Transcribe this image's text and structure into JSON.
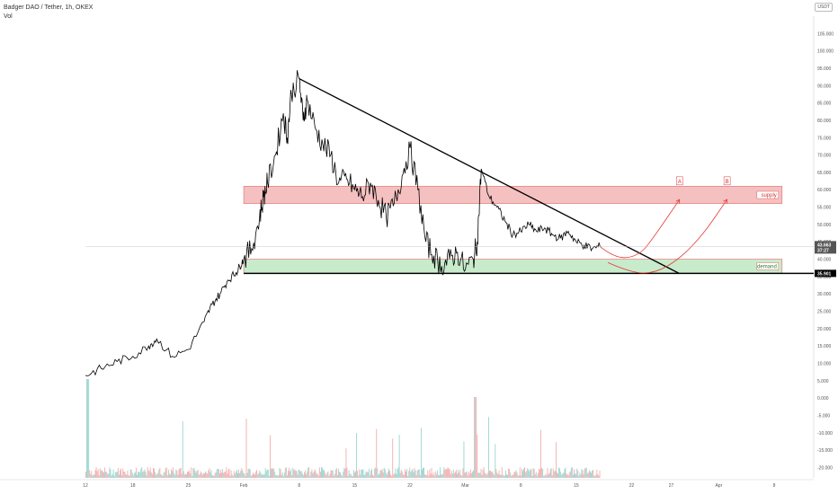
{
  "header": {
    "symbol_line": "Badger DAO / Tether, 1h, OKEX",
    "indicator": "Vol",
    "currency": "USDT"
  },
  "colors": {
    "price": "#000000",
    "supply_fill": "#f4b6b6",
    "supply_stroke": "#e06666",
    "demand_fill": "#bfe8c4",
    "demand_stroke": "#e06666",
    "arrow": "#e53935",
    "vol_up": "#80cbc4",
    "vol_down": "#ef9a9a",
    "support_line": "#000000",
    "last_price_badge": "#555555"
  },
  "chart_data": {
    "type": "line",
    "title": "Badger DAO / Tether, 1h, OKEX",
    "x_tick_labels": [
      "12",
      "18",
      "25",
      "Feb",
      "8",
      "15",
      "22",
      "Mar",
      "8",
      "15",
      "22",
      "27",
      "Apr",
      "8"
    ],
    "x_tick_days": [
      0,
      6,
      13,
      20,
      27,
      34,
      41,
      48,
      55,
      62,
      69,
      74,
      80,
      87
    ],
    "y_ticks": [
      105,
      100,
      95,
      90,
      85,
      80,
      75,
      70,
      65,
      60,
      55,
      50,
      45,
      40,
      35,
      30,
      25,
      20,
      15,
      10,
      5,
      0,
      -5,
      -10,
      -15,
      -20
    ],
    "y_tick_labels": [
      "105.000",
      "100.000",
      "95.000",
      "90.000",
      "85.000",
      "80.000",
      "75.000",
      "70.000",
      "65.000",
      "60.000",
      "55.000",
      "50.000",
      "45.000",
      "40.000",
      "35.000",
      "30.000",
      "25.000",
      "20.000",
      "15.000",
      "10.000",
      "5.000",
      "0.000",
      "-5.000",
      "-10.000",
      "-15.000",
      "-20.000"
    ],
    "ylim": [
      -23,
      110
    ],
    "xlim": [
      0,
      92
    ],
    "price_series": {
      "x_day": [
        0,
        2,
        4,
        6,
        8,
        9,
        11,
        13,
        15,
        16,
        17,
        18,
        19,
        19.5,
        20,
        21,
        22,
        22.5,
        23,
        24,
        25,
        25.5,
        26,
        27,
        27.5,
        28,
        29,
        30,
        31,
        32,
        33,
        34,
        35,
        36,
        37,
        38,
        39,
        40,
        41,
        42,
        43,
        44,
        45,
        46,
        47,
        48,
        49,
        49.5,
        50,
        51,
        52,
        53,
        54,
        55,
        56,
        57,
        58,
        59,
        60,
        61,
        62,
        63,
        64,
        65
      ],
      "y_value": [
        6.5,
        8.5,
        10.5,
        12,
        15,
        17,
        12,
        14,
        22,
        27,
        30,
        34,
        36,
        38,
        40,
        43,
        52,
        58,
        62,
        70,
        82,
        75,
        88,
        92,
        80,
        86,
        78,
        73,
        70,
        62,
        63,
        60,
        58,
        62,
        57,
        52,
        56,
        64,
        72,
        60,
        45,
        41,
        38,
        40,
        42,
        37,
        40,
        45,
        66,
        58,
        55,
        51,
        47,
        48,
        50,
        48,
        49,
        47,
        46,
        48,
        45,
        44,
        43,
        43.66
      ]
    },
    "trendline": {
      "from": [
        27,
        92
      ],
      "to": [
        75,
        35.9
      ]
    },
    "support_level": 35.901,
    "zones": [
      {
        "label": "supply",
        "x_from": 20,
        "x_to": 88,
        "y_low": 56,
        "y_high": 61
      },
      {
        "label": "demand",
        "x_from": 20,
        "x_to": 88,
        "y_low": 35.9,
        "y_high": 40
      }
    ],
    "projections": [
      {
        "label": "A",
        "path": [
          [
            65,
            43.66
          ],
          [
            67,
            40
          ],
          [
            70,
            41
          ],
          [
            72,
            47
          ],
          [
            75,
            57
          ]
        ]
      },
      {
        "label": "B",
        "path": [
          [
            66,
            39
          ],
          [
            69,
            36
          ],
          [
            72,
            36
          ],
          [
            75,
            40
          ],
          [
            78,
            47
          ],
          [
            81,
            57
          ]
        ]
      }
    ],
    "price_label": "43.663",
    "price_time": "37:27",
    "support_label": "35.901",
    "grid": false,
    "volume_note": "volume histogram along bottom"
  }
}
